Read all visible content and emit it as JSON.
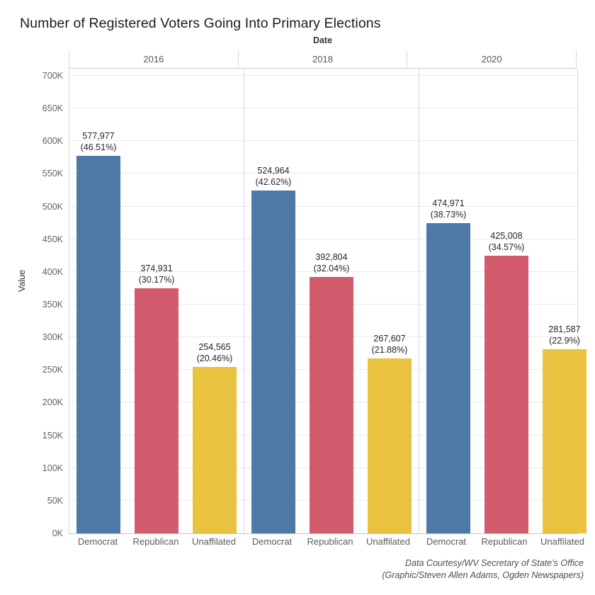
{
  "title": "Number of Registered Voters Going Into Primary Elections",
  "footer": {
    "line1": "Data Courtesy/WV Secretary of State’s Office",
    "line2": "(Graphic/Steven Allen Adams, Ogden Newspapers)"
  },
  "chart_data": {
    "type": "bar",
    "title": "Number of Registered Voters Going Into Primary Elections",
    "facet_label": "Date",
    "ylabel": "Value",
    "xlabel": "",
    "ylim": [
      0,
      700000
    ],
    "ytick_step": 50000,
    "yticks": [
      "0K",
      "50K",
      "100K",
      "150K",
      "200K",
      "250K",
      "300K",
      "350K",
      "400K",
      "450K",
      "500K",
      "550K",
      "600K",
      "650K",
      "700K"
    ],
    "grid": true,
    "legend": "none",
    "categories": [
      "Democrat",
      "Republican",
      "Unaffilated"
    ],
    "colors": {
      "Democrat": "#4d79a7",
      "Republican": "#d25b6e",
      "Unaffilated": "#e9c23f"
    },
    "facets": [
      {
        "year": "2016",
        "bars": [
          {
            "category": "Democrat",
            "value": 577977,
            "value_label": "577,977",
            "pct_label": "(46.51%)"
          },
          {
            "category": "Republican",
            "value": 374931,
            "value_label": "374,931",
            "pct_label": "(30.17%)"
          },
          {
            "category": "Unaffilated",
            "value": 254565,
            "value_label": "254,565",
            "pct_label": "(20.46%)"
          }
        ]
      },
      {
        "year": "2018",
        "bars": [
          {
            "category": "Democrat",
            "value": 524964,
            "value_label": "524,964",
            "pct_label": "(42.62%)"
          },
          {
            "category": "Republican",
            "value": 392804,
            "value_label": "392,804",
            "pct_label": "(32.04%)"
          },
          {
            "category": "Unaffilated",
            "value": 267607,
            "value_label": "267,607",
            "pct_label": "(21.88%)"
          }
        ]
      },
      {
        "year": "2020",
        "bars": [
          {
            "category": "Democrat",
            "value": 474971,
            "value_label": "474,971",
            "pct_label": "(38.73%)"
          },
          {
            "category": "Republican",
            "value": 425008,
            "value_label": "425,008",
            "pct_label": "(34.57%)"
          },
          {
            "category": "Unaffilated",
            "value": 281587,
            "value_label": "281,587",
            "pct_label": "(22.9%)"
          }
        ]
      }
    ]
  }
}
